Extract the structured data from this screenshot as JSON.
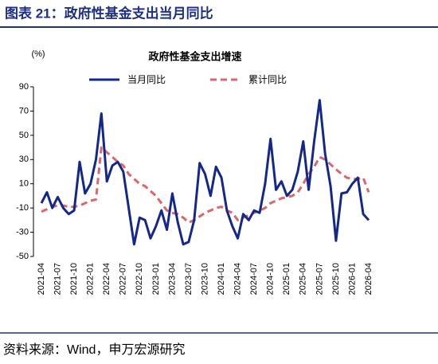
{
  "header": {
    "title": "图表 21：政府性基金支出当月同比"
  },
  "chart_data": {
    "type": "line",
    "title": "政府性基金支出增速",
    "ylabel": "(%)",
    "categories": [
      "2021-04",
      null,
      null,
      "2021-07",
      null,
      null,
      "2021-10",
      null,
      null,
      "2022-01",
      null,
      null,
      "2022-04",
      null,
      null,
      "2022-07",
      null,
      null,
      "2022-10",
      null,
      null,
      "2023-01",
      null,
      null,
      "2023-04",
      null,
      null,
      "2023-07",
      null,
      null,
      "2023-10",
      null,
      null,
      "2024-01",
      null,
      null,
      "2024-04",
      null,
      null,
      "2024-07",
      null,
      null,
      "2024-10",
      null,
      null,
      "2025-01",
      null,
      null,
      "2025-04",
      null,
      null,
      "2025-07",
      null,
      null,
      "2025-10",
      null,
      null,
      "2026-01",
      null,
      null,
      "2026-04"
    ],
    "series": [
      {
        "name": "当月同比",
        "color": "#13288a",
        "dashed": false,
        "values": [
          -6,
          3,
          -10,
          -1,
          -10,
          -15,
          -12,
          28,
          2,
          10,
          30,
          68,
          12,
          25,
          28,
          20,
          -10,
          -40,
          -18,
          -20,
          -35,
          -25,
          -12,
          -28,
          2,
          -22,
          -40,
          -38,
          -20,
          27,
          18,
          0,
          24,
          15,
          -12,
          -25,
          -35,
          -15,
          -20,
          -12,
          -14,
          10,
          47,
          5,
          12,
          0,
          5,
          20,
          45,
          5,
          45,
          79,
          35,
          8,
          -37,
          2,
          3,
          10,
          15,
          -15,
          -20
        ]
      },
      {
        "name": "累计同比",
        "color": "#d9676b",
        "dashed": true,
        "values": [
          -13,
          -11,
          -9,
          -8,
          -8,
          -9,
          -9,
          -8,
          -6,
          -4,
          -3,
          40,
          36,
          32,
          28,
          25,
          18,
          14,
          10,
          8,
          4,
          0,
          -6,
          -12,
          -14,
          -15,
          -18,
          -22,
          -20,
          -17,
          -14,
          -12,
          -10,
          -9,
          -12,
          -14,
          -20,
          -18,
          -16,
          -14,
          -12,
          -10,
          -6,
          -4,
          -2,
          -1,
          0,
          3,
          10,
          18,
          24,
          32,
          30,
          26,
          22,
          18,
          15,
          14,
          14,
          15,
          3
        ]
      }
    ],
    "ylim": [
      -50,
      90
    ],
    "yticks": [
      -50,
      -30,
      -10,
      10,
      30,
      50,
      70,
      90
    ],
    "grid": false
  },
  "footer": {
    "source": "资料来源：Wind，申万宏源研究"
  }
}
